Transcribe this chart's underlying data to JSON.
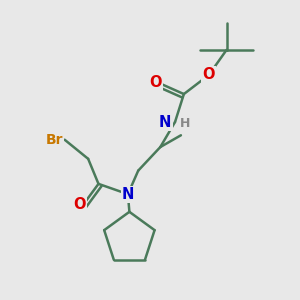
{
  "background_color": "#e8e8e8",
  "bond_color": "#4a7a5a",
  "bond_width": 1.8,
  "atom_colors": {
    "Br": "#c87800",
    "O": "#dd0000",
    "N": "#0000cc",
    "H": "#888888",
    "C": "#4a7a5a"
  },
  "figsize": [
    3.0,
    3.0
  ],
  "dpi": 100,
  "xlim": [
    0,
    10
  ],
  "ylim": [
    0,
    10
  ]
}
